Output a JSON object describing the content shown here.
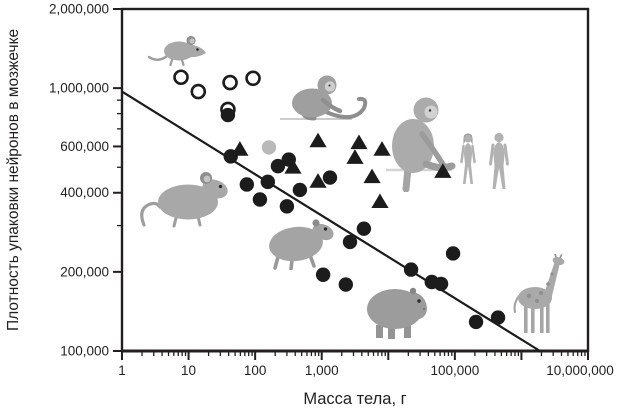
{
  "chart_data": {
    "type": "scatter",
    "title": "",
    "xlabel": "Масса тела, г",
    "ylabel": "Плотность упаковки нейронов в мозжечке",
    "x_scale": "log",
    "y_scale": "log",
    "xlim": [
      1,
      10000000
    ],
    "ylim": [
      100000,
      2000000
    ],
    "grid": false,
    "legend": "none",
    "colors": {
      "marker": "#1c1c1c",
      "gray_marker": "#b9b9b9",
      "axis": "#231f20",
      "text": "#231f20",
      "background": "#ffffff"
    },
    "x_tick_labels": [
      {
        "value": 1,
        "label": "1"
      },
      {
        "value": 10,
        "label": "10"
      },
      {
        "value": 100,
        "label": "100"
      },
      {
        "value": 1000,
        "label": "1,000"
      },
      {
        "value": 100000,
        "label": "100,000"
      },
      {
        "value": 10000000,
        "label": "10,000,000"
      }
    ],
    "y_tick_labels": [
      {
        "value": 100000,
        "label": "100,000"
      },
      {
        "value": 200000,
        "label": "200,000"
      },
      {
        "value": 400000,
        "label": "400,000"
      },
      {
        "value": 600000,
        "label": "600,000"
      },
      {
        "value": 1000000,
        "label": "1,000,000"
      },
      {
        "value": 2000000,
        "label": "2,000,000"
      }
    ],
    "y_minor_ticks": [
      300000,
      500000,
      700000,
      800000,
      900000
    ],
    "trendline": {
      "x1": 1,
      "y1": 970000,
      "x2": 1900000,
      "y2": 100000
    },
    "series": [
      {
        "name": "open-circles",
        "marker": "open-circle",
        "color": "#1c1c1c",
        "points": [
          [
            7.7,
            1100000
          ],
          [
            14,
            970000
          ],
          [
            42,
            1050000
          ],
          [
            93,
            1090000
          ],
          [
            39,
            830000
          ]
        ]
      },
      {
        "name": "gray-circle",
        "marker": "circle",
        "color": "#b9b9b9",
        "points": [
          [
            161,
            595000
          ]
        ]
      },
      {
        "name": "triangles",
        "marker": "triangle",
        "color": "#1c1c1c",
        "points": [
          [
            59,
            585000
          ],
          [
            370,
            500000
          ],
          [
            880,
            630000
          ],
          [
            880,
            442000
          ],
          [
            3630,
            620000
          ],
          [
            3160,
            545000
          ],
          [
            8050,
            585000
          ],
          [
            5700,
            460000
          ],
          [
            7500,
            370000
          ],
          [
            66000,
            482000
          ]
        ]
      },
      {
        "name": "filled-circles",
        "marker": "circle",
        "color": "#1c1c1c",
        "points": [
          [
            39,
            790000
          ],
          [
            43,
            550000
          ],
          [
            320,
            535000
          ],
          [
            220,
            505000
          ],
          [
            75,
            430000
          ],
          [
            155,
            440000
          ],
          [
            118,
            377000
          ],
          [
            300,
            355000
          ],
          [
            470,
            410000
          ],
          [
            1330,
            457000
          ],
          [
            4300,
            292000
          ],
          [
            2660,
            260000
          ],
          [
            1050,
            195000
          ],
          [
            2300,
            179000
          ],
          [
            22000,
            204000
          ],
          [
            45000,
            183000
          ],
          [
            62000,
            180000
          ],
          [
            94000,
            235000
          ],
          [
            208000,
            129000
          ],
          [
            445000,
            134000
          ]
        ]
      }
    ],
    "animal_illustrations": [
      "mouse",
      "capuchin-monkey",
      "macaque",
      "humans",
      "rat",
      "agouti",
      "capybara",
      "giraffe"
    ]
  }
}
